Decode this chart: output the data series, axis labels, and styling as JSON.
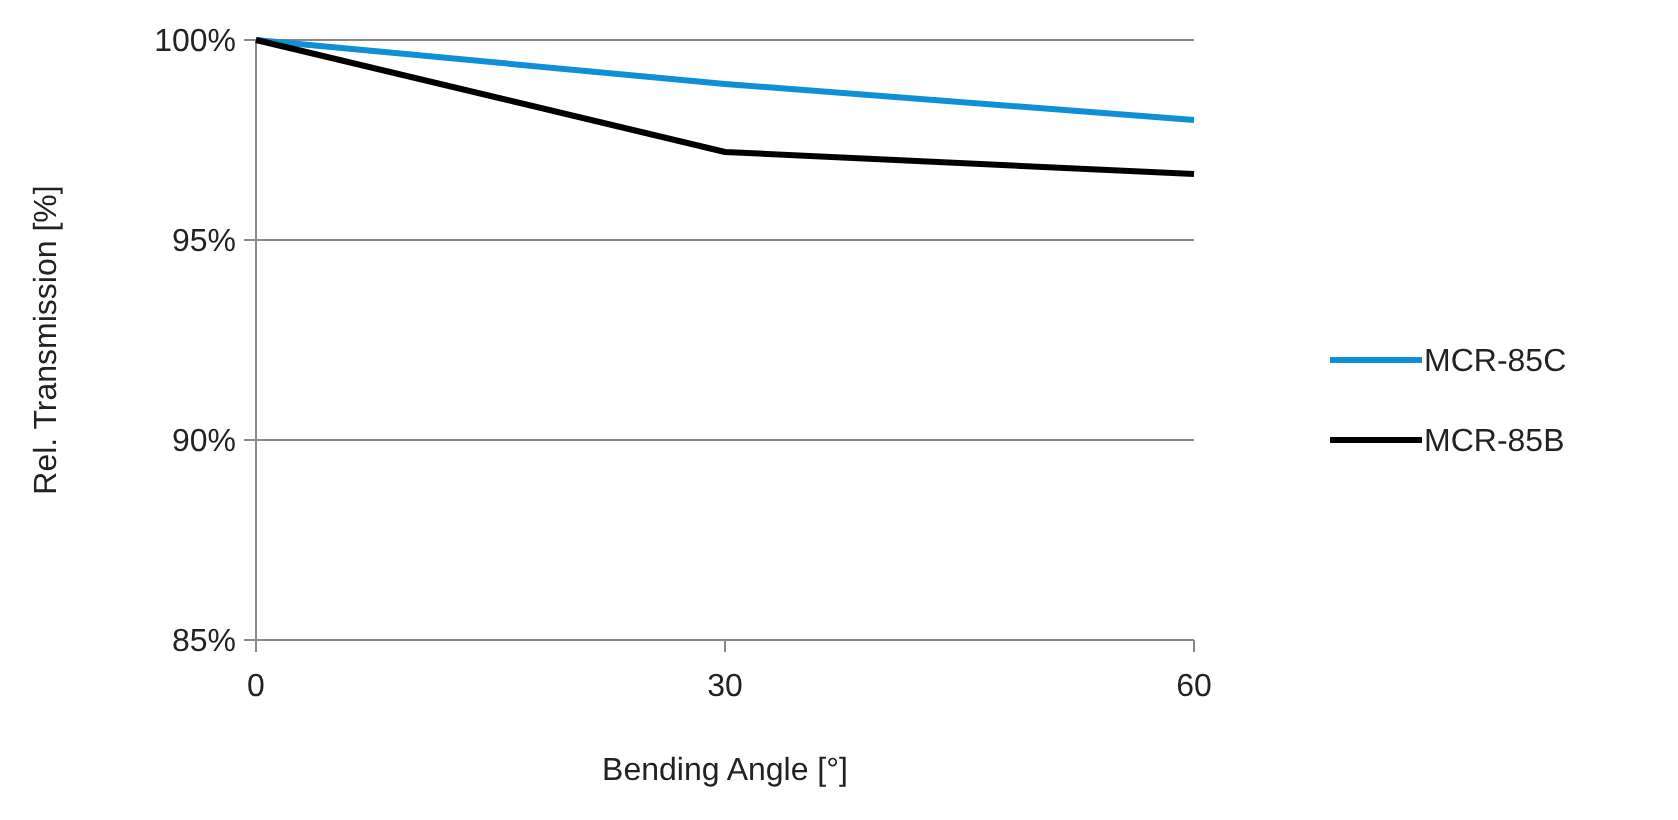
{
  "chart_data": {
    "type": "line",
    "xlabel": "Bending Angle [°]",
    "ylabel": "Rel. Transmission [%]",
    "x": [
      0,
      30,
      60
    ],
    "xlim": [
      0,
      60
    ],
    "xticks": [
      0,
      30,
      60
    ],
    "ylim": [
      85,
      100
    ],
    "yticks": [
      {
        "value": 85,
        "label": "85%"
      },
      {
        "value": 90,
        "label": "90%"
      },
      {
        "value": 95,
        "label": "95%"
      },
      {
        "value": 100,
        "label": "100%"
      }
    ],
    "grid": "y",
    "legend": "right",
    "marker": "none",
    "line_style": "solid",
    "series": [
      {
        "name": "MCR-85C",
        "color": "#0f8fd6",
        "values": [
          100,
          98.9,
          98.0
        ]
      },
      {
        "name": "MCR-85B",
        "color": "#000000",
        "values": [
          100,
          97.2,
          96.65
        ]
      }
    ]
  }
}
